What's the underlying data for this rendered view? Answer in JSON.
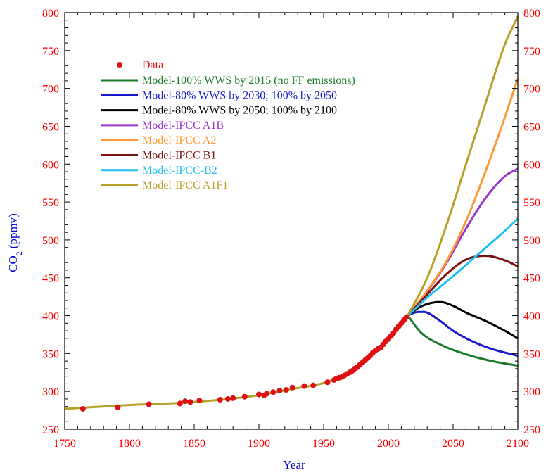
{
  "chart_data": {
    "type": "line",
    "title": "",
    "xlabel": "Year",
    "ylabel": "CO",
    "ylabel_subscript": "2",
    "ylabel_unit": "(ppmv)",
    "xlim": [
      1750,
      2100
    ],
    "ylim": [
      250,
      800
    ],
    "x_ticks": [
      "1750",
      "1800",
      "1850",
      "1900",
      "1950",
      "2000",
      "2050",
      "2100"
    ],
    "y_ticks": [
      "250",
      "300",
      "350",
      "400",
      "450",
      "500",
      "550",
      "600",
      "650",
      "700",
      "750",
      "800"
    ],
    "grid": false,
    "legend_position": "top-left",
    "colors": {
      "axis_labels": "#ff0000",
      "axis_titles": "#0000cc",
      "frame": "#000000"
    },
    "data": {
      "name": "Data",
      "color": "#dd1111",
      "marker": "circle",
      "points": [
        [
          1764,
          277
        ],
        [
          1791,
          279
        ],
        [
          1815,
          283
        ],
        [
          1839,
          284
        ],
        [
          1843,
          287
        ],
        [
          1847,
          286
        ],
        [
          1854,
          288
        ],
        [
          1870,
          289
        ],
        [
          1876,
          290
        ],
        [
          1880,
          291
        ],
        [
          1889,
          293
        ],
        [
          1900,
          296
        ],
        [
          1904,
          295
        ],
        [
          1906,
          297
        ],
        [
          1911,
          299
        ],
        [
          1916,
          301
        ],
        [
          1921,
          302
        ],
        [
          1926,
          305
        ],
        [
          1935,
          307
        ],
        [
          1942,
          308
        ],
        [
          1953,
          312
        ],
        [
          1958,
          315
        ],
        [
          1960,
          317
        ],
        [
          1962,
          318
        ],
        [
          1964,
          319
        ],
        [
          1966,
          321
        ],
        [
          1968,
          323
        ],
        [
          1970,
          325
        ],
        [
          1972,
          327
        ],
        [
          1974,
          330
        ],
        [
          1976,
          332
        ],
        [
          1978,
          335
        ],
        [
          1980,
          338
        ],
        [
          1982,
          341
        ],
        [
          1984,
          344
        ],
        [
          1986,
          347
        ],
        [
          1988,
          351
        ],
        [
          1990,
          354
        ],
        [
          1992,
          356
        ],
        [
          1994,
          358
        ],
        [
          1996,
          362
        ],
        [
          1998,
          366
        ],
        [
          2000,
          369
        ],
        [
          2002,
          373
        ],
        [
          2004,
          377
        ],
        [
          2006,
          382
        ],
        [
          2008,
          386
        ],
        [
          2010,
          390
        ],
        [
          2012,
          394
        ],
        [
          2014,
          398
        ]
      ]
    },
    "historical": {
      "color": "#b8a02a",
      "x": [
        1750,
        1800,
        1850,
        1900,
        1925,
        1950,
        1960,
        1970,
        1980,
        1990,
        2000,
        2010,
        2015
      ],
      "y": [
        277,
        282,
        286,
        295,
        303,
        311,
        317,
        325,
        338,
        353,
        369,
        389,
        400
      ]
    },
    "series": [
      {
        "name": "Model-100% WWS by 2015 (no FF emissions)",
        "color": "#1a7a2a",
        "x": [
          2015,
          2025,
          2040,
          2060,
          2080,
          2100
        ],
        "y": [
          400,
          378,
          362,
          349,
          340,
          334
        ]
      },
      {
        "name": "Model-80% WWS by 2030; 100% by 2050",
        "color": "#1a1acc",
        "x": [
          2015,
          2020,
          2027,
          2040,
          2050,
          2065,
          2080,
          2100
        ],
        "y": [
          400,
          404,
          405,
          393,
          380,
          366,
          356,
          347
        ]
      },
      {
        "name": "Model-80% WWS by 2050; 100% by 2100",
        "color": "#000000",
        "x": [
          2015,
          2025,
          2040,
          2050,
          2060,
          2075,
          2090,
          2100
        ],
        "y": [
          400,
          412,
          418,
          413,
          404,
          393,
          380,
          370
        ]
      },
      {
        "name": "Model-IPCC A1B",
        "color": "#9a35c8",
        "x": [
          2015,
          2030,
          2045,
          2060,
          2075,
          2090,
          2100
        ],
        "y": [
          400,
          432,
          470,
          515,
          555,
          584,
          594
        ]
      },
      {
        "name": "Model-IPCC A2",
        "color": "#ff9933",
        "x": [
          2015,
          2030,
          2045,
          2060,
          2075,
          2090,
          2100
        ],
        "y": [
          400,
          433,
          472,
          525,
          590,
          662,
          713
        ]
      },
      {
        "name": "Model-IPCC B1",
        "color": "#7a1212",
        "x": [
          2015,
          2030,
          2045,
          2060,
          2075,
          2090,
          2100
        ],
        "y": [
          400,
          428,
          455,
          474,
          479,
          473,
          465
        ]
      },
      {
        "name": "Model-IPCC-B2",
        "color": "#1ec0f0",
        "x": [
          2015,
          2030,
          2050,
          2070,
          2090,
          2100
        ],
        "y": [
          400,
          424,
          452,
          482,
          512,
          528
        ]
      },
      {
        "name": "Model-IPCC A1F1",
        "color": "#b8a02a",
        "x": [
          2015,
          2030,
          2045,
          2060,
          2075,
          2090,
          2100
        ],
        "y": [
          400,
          450,
          520,
          600,
          680,
          758,
          795
        ]
      }
    ]
  }
}
